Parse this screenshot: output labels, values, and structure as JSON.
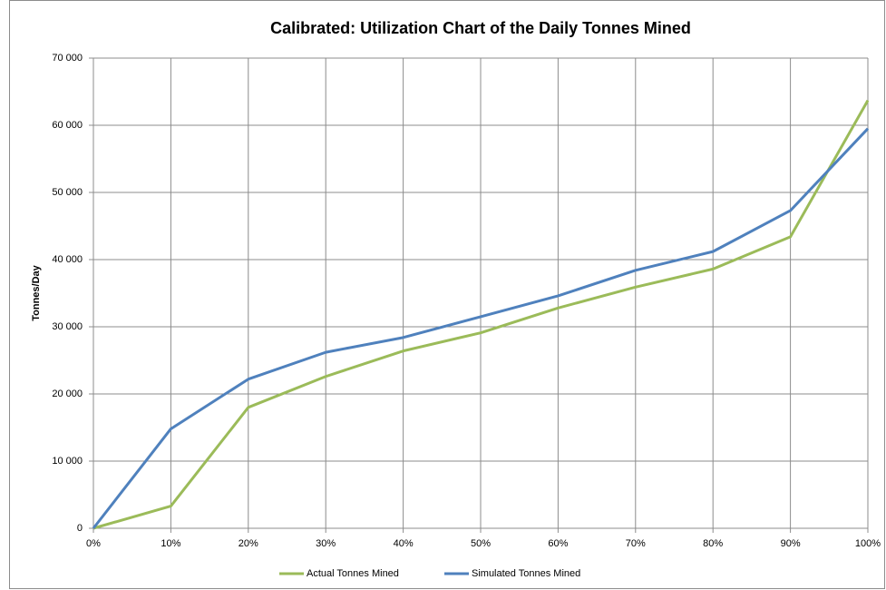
{
  "chart_data": {
    "type": "line",
    "title": "Calibrated:  Utilization Chart of the Daily Tonnes Mined",
    "y_label": "Tonnes/Day",
    "categories": [
      "0%",
      "10%",
      "20%",
      "30%",
      "40%",
      "50%",
      "60%",
      "70%",
      "80%",
      "90%",
      "100%"
    ],
    "series": [
      {
        "name": "Actual Tonnes Mined",
        "color": "#9bbb59",
        "values": [
          0,
          3300,
          18000,
          22600,
          26400,
          29100,
          32800,
          35900,
          38600,
          43400,
          63700
        ]
      },
      {
        "name": "Simulated Tonnes Mined",
        "color": "#4f81bd",
        "values": [
          0,
          14800,
          22200,
          26200,
          28400,
          31500,
          34600,
          38400,
          41200,
          47300,
          59500
        ]
      }
    ],
    "ylim": [
      0,
      70000
    ],
    "yticks": [
      0,
      {
        "value": 10000,
        "label": "10 000"
      },
      {
        "value": 20000,
        "label": "20 000"
      },
      {
        "value": 30000,
        "label": "30 000"
      },
      {
        "value": 40000,
        "label": "40 000"
      },
      {
        "value": 50000,
        "label": "50 000"
      },
      {
        "value": 60000,
        "label": "60 000"
      },
      {
        "value": 70000,
        "label": "70 000"
      }
    ],
    "grid": true,
    "legend": "bottom"
  }
}
